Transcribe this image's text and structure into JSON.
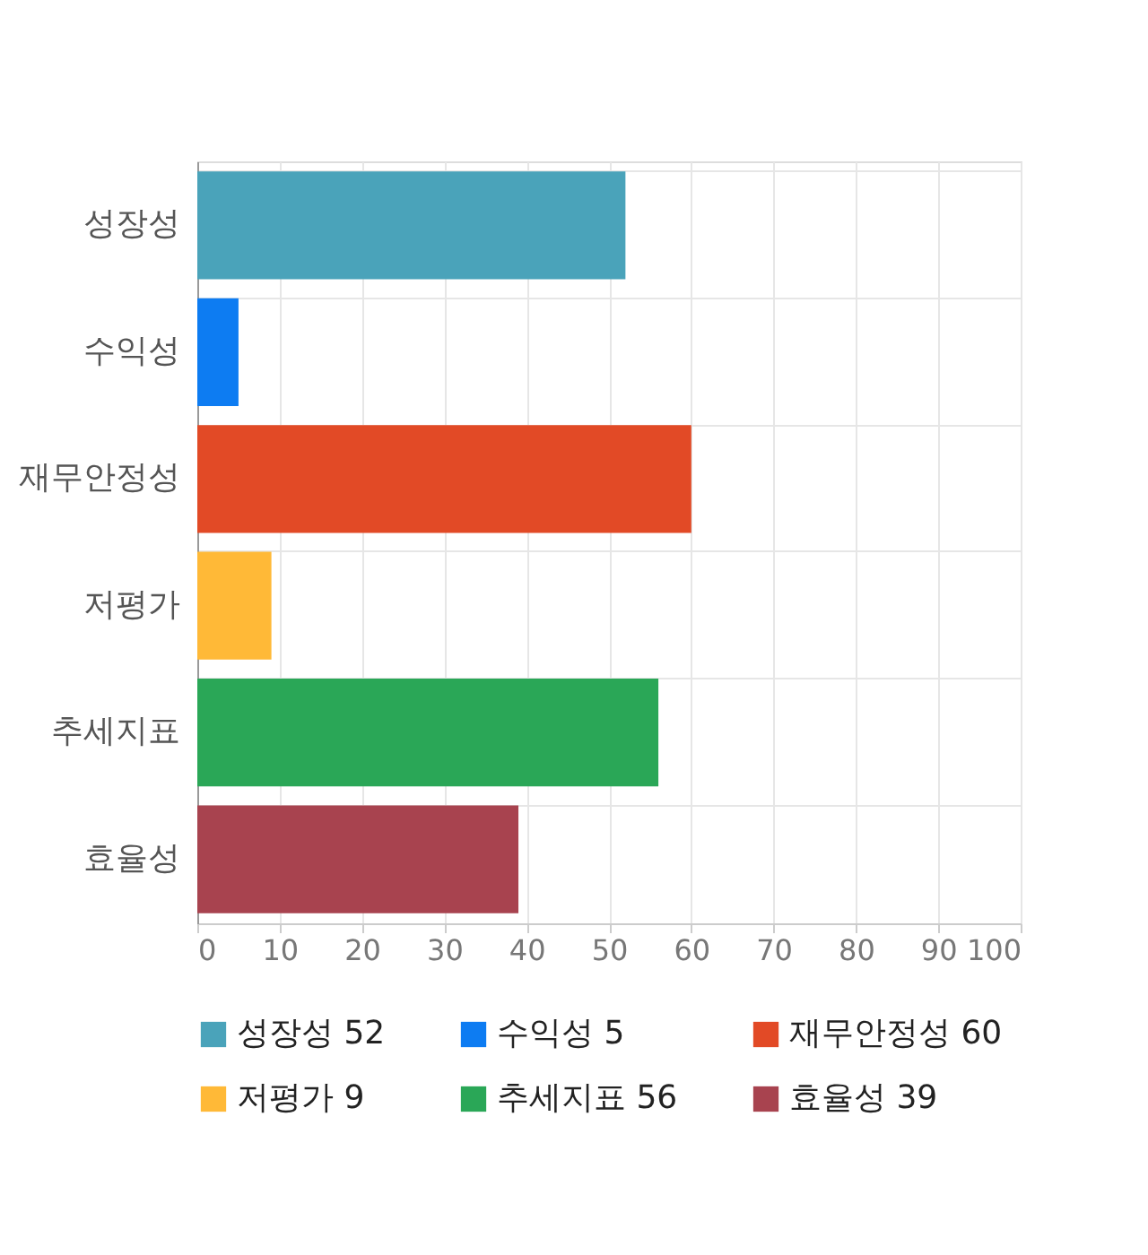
{
  "chart_data": {
    "type": "bar",
    "orientation": "horizontal",
    "stacked": true,
    "categories": [
      "성장성",
      "수익성",
      "재무안정성",
      "저평가",
      "추세지표",
      "효율성"
    ],
    "series": [
      {
        "name": "성장성 52",
        "color": "#4aa3ba",
        "values": [
          52,
          null,
          null,
          null,
          null,
          null
        ]
      },
      {
        "name": "수익성 5",
        "color": "#0d7cf2",
        "values": [
          null,
          5,
          null,
          null,
          null,
          null
        ]
      },
      {
        "name": "재무안정성 60",
        "color": "#e24a26",
        "values": [
          null,
          null,
          60,
          null,
          null,
          null
        ]
      },
      {
        "name": "저평가 9",
        "color": "#ffb937",
        "values": [
          null,
          null,
          null,
          9,
          null,
          null
        ]
      },
      {
        "name": "추세지표 56",
        "color": "#2aa757",
        "values": [
          null,
          null,
          null,
          null,
          56,
          null
        ]
      },
      {
        "name": "효율성 39",
        "color": "#a8434f",
        "values": [
          null,
          null,
          null,
          null,
          null,
          39
        ]
      }
    ],
    "xlim": [
      0,
      100
    ],
    "xticks": [
      0,
      10,
      20,
      30,
      40,
      50,
      60,
      70,
      80,
      90,
      100
    ],
    "grid": true,
    "legend": "bottom"
  }
}
